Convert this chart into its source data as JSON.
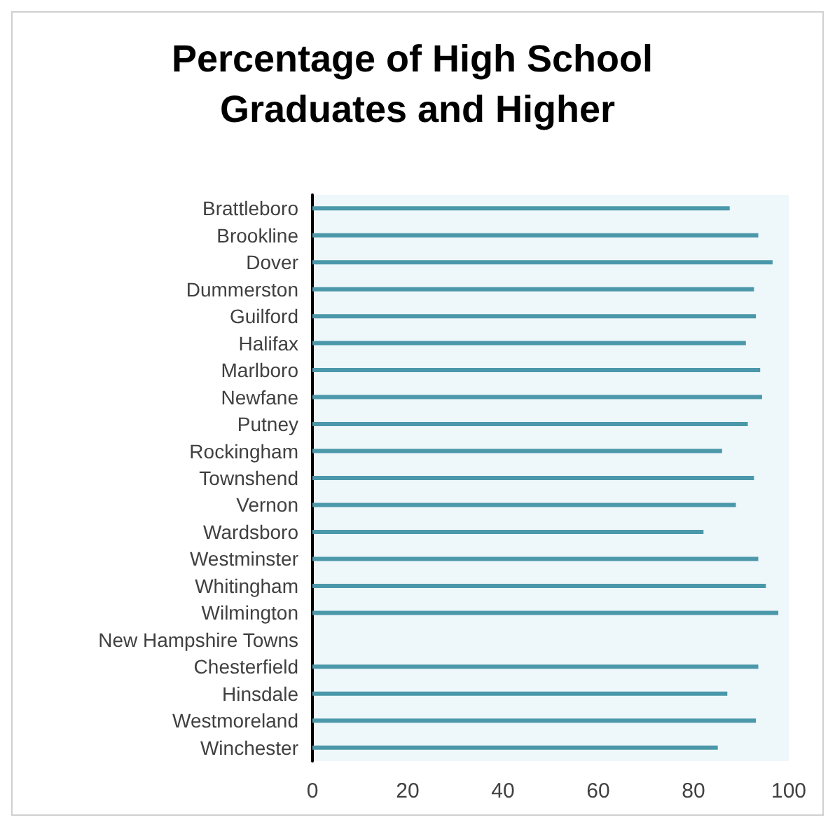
{
  "chart_data": {
    "type": "bar",
    "orientation": "horizontal",
    "title": "Percentage of High School Graduates and Higher",
    "categories": [
      "Brattleboro",
      "Brookline",
      "Dover",
      "Dummerston",
      "Guilford",
      "Halifax",
      "Marlboro",
      "Newfane",
      "Putney",
      "Rockingham",
      "Townshend",
      "Vernon",
      "Wardsboro",
      "Westminster",
      "Whitingham",
      "Wilmington",
      "New Hampshire Towns",
      "Chesterfield",
      "Hinsdale",
      "Westmoreland",
      "Winchester"
    ],
    "values": [
      87.6,
      93.6,
      96.6,
      92.7,
      93.1,
      91.0,
      94.0,
      94.4,
      91.4,
      86.0,
      92.7,
      88.9,
      82.1,
      93.6,
      95.2,
      97.8,
      null,
      93.6,
      87.1,
      93.1,
      85.1
    ],
    "color": "#4a98aa",
    "xlim": [
      0,
      100
    ],
    "xticks": [
      0,
      20,
      40,
      60,
      80,
      100
    ],
    "grid": false
  }
}
